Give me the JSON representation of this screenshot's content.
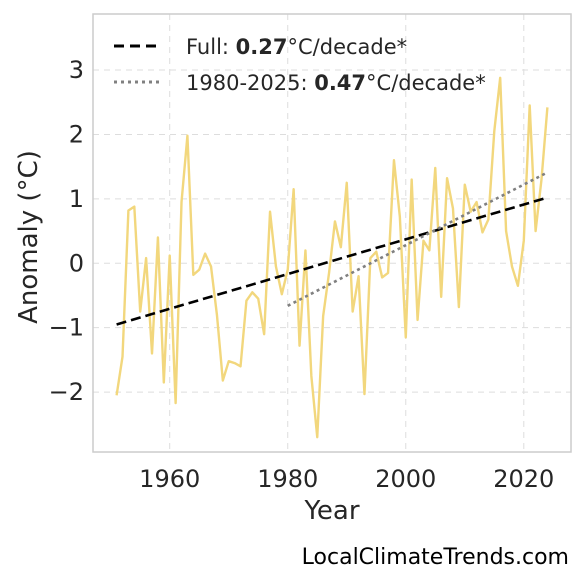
{
  "chart_data": {
    "type": "line",
    "xlabel": "Year",
    "ylabel": "Anomaly (°C)",
    "xlim": [
      1947,
      2028
    ],
    "ylim": [
      -2.93,
      3.87
    ],
    "x_ticks": [
      1960,
      1980,
      2000,
      2020
    ],
    "y_ticks": [
      -2,
      -1,
      0,
      1,
      2,
      3
    ],
    "y_tick_labels": [
      "−2",
      "−1",
      "0",
      "1",
      "2",
      "3"
    ],
    "grid": true,
    "legend_placement": "top-left",
    "series": [
      {
        "color": "#f2d77d",
        "x": [
          1951,
          1952,
          1953,
          1954,
          1955,
          1956,
          1957,
          1958,
          1959,
          1960,
          1961,
          1962,
          1963,
          1964,
          1965,
          1966,
          1967,
          1968,
          1969,
          1970,
          1971,
          1972,
          1973,
          1974,
          1975,
          1976,
          1977,
          1978,
          1979,
          1980,
          1981,
          1982,
          1983,
          1984,
          1985,
          1986,
          1987,
          1988,
          1989,
          1990,
          1991,
          1992,
          1993,
          1994,
          1995,
          1996,
          1997,
          1998,
          1999,
          2000,
          2001,
          2002,
          2003,
          2004,
          2005,
          2006,
          2007,
          2008,
          2009,
          2010,
          2011,
          2012,
          2013,
          2014,
          2015,
          2016,
          2017,
          2018,
          2019,
          2020,
          2021,
          2022,
          2023,
          2024
        ],
        "y": [
          -2.05,
          -1.45,
          0.82,
          0.88,
          -0.75,
          0.08,
          -1.4,
          0.4,
          -1.85,
          0.12,
          -2.17,
          0.95,
          1.98,
          -0.18,
          -0.1,
          0.15,
          -0.05,
          -0.8,
          -1.82,
          -1.52,
          -1.55,
          -1.6,
          -0.58,
          -0.45,
          -0.55,
          -1.1,
          0.8,
          -0.05,
          -0.48,
          -0.1,
          1.15,
          -1.28,
          0.2,
          -1.75,
          -2.7,
          -0.82,
          -0.15,
          0.65,
          0.25,
          1.25,
          -0.75,
          -0.2,
          -2.03,
          0.08,
          0.18,
          -0.22,
          -0.15,
          1.6,
          0.72,
          -1.15,
          1.3,
          -0.88,
          0.35,
          0.2,
          1.48,
          -0.52,
          1.32,
          0.85,
          -0.68,
          1.22,
          0.8,
          0.95,
          0.48,
          0.68,
          2.05,
          2.88,
          0.5,
          -0.05,
          -0.35,
          0.35,
          2.45,
          0.5,
          1.3,
          2.42
        ]
      },
      {
        "name": "Full",
        "style": "dashed",
        "color": "#000000",
        "x": [
          1951,
          2024
        ],
        "y": [
          -0.95,
          1.02
        ]
      },
      {
        "name": "1980-2025",
        "style": "dotted",
        "color": "#808080",
        "x": [
          1980,
          2024
        ],
        "y": [
          -0.66,
          1.41
        ]
      }
    ]
  },
  "legend": [
    {
      "prefix": "Full: ",
      "value": "0.27",
      "suffix": "°C/decade*",
      "color": "#000000",
      "style": "dashed"
    },
    {
      "prefix": "1980-2025: ",
      "value": "0.47",
      "suffix": "°C/decade*",
      "color": "#808080",
      "style": "dotted"
    }
  ],
  "credit": "LocalClimateTrends.com"
}
